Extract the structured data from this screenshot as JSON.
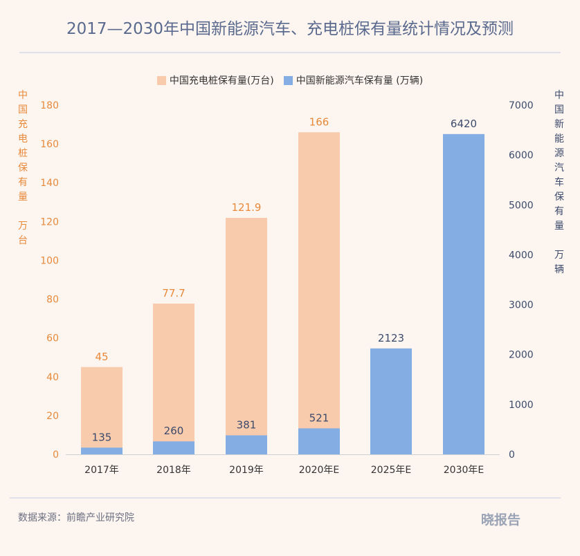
{
  "title": "2017—2030年中国新能源汽车、充电桩保有量统计情况及预测",
  "footer": {
    "source": "数据来源：前瞻产业研究院",
    "logo": "晓报告"
  },
  "chart_data": {
    "type": "bar",
    "categories": [
      "2017年",
      "2018年",
      "2019年",
      "2020年E",
      "2025年E",
      "2030年E"
    ],
    "series": [
      {
        "name": "中国充电桩保有量(万台)",
        "axis": "left",
        "color": "#f8cbad",
        "label_color": "#e8893a",
        "values": [
          45,
          77.7,
          121.9,
          166,
          null,
          null
        ],
        "labels": [
          "45",
          "77.7",
          "121.9",
          "166",
          "",
          ""
        ]
      },
      {
        "name": "中国新能源汽车保有量 (万辆)",
        "axis": "right",
        "color": "#84aee3",
        "label_color": "#3b4a6b",
        "values": [
          135,
          260,
          381,
          521,
          2123,
          6420
        ],
        "labels": [
          "135",
          "260",
          "381",
          "521",
          "2123",
          "6420"
        ]
      }
    ],
    "left_axis": {
      "label": "中国充电桩保有量 万台",
      "label_chars": [
        "中",
        "国",
        "充",
        "电",
        "桩",
        "保",
        "有",
        "量",
        "",
        "万",
        "台"
      ],
      "ylim": [
        0,
        180
      ],
      "ticks": [
        0,
        20,
        40,
        60,
        80,
        100,
        120,
        140,
        160,
        180
      ],
      "color": "#e8893a"
    },
    "right_axis": {
      "label": "中国新能源汽车保有量 万辆",
      "label_chars": [
        "中",
        "国",
        "新",
        "能",
        "源",
        "汽",
        "车",
        "保",
        "有",
        "量",
        "",
        "万",
        "辆"
      ],
      "ylim": [
        0,
        7000
      ],
      "ticks": [
        0,
        1000,
        2000,
        3000,
        4000,
        5000,
        6000,
        7000
      ],
      "color": "#3b4a6b"
    },
    "grid": false,
    "legend": "top"
  }
}
